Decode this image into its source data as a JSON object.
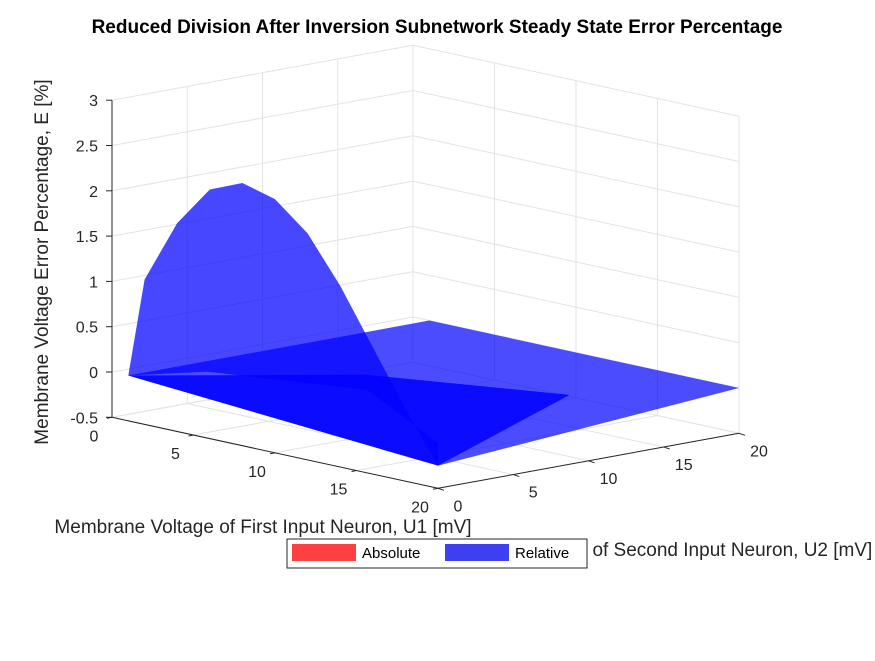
{
  "chart_data": {
    "type": "surface3d",
    "title": "Reduced Division After Inversion Subnetwork Steady State Error Percentage",
    "xlabel": "Membrane Voltage of First Input Neuron, U1 [mV]",
    "ylabel": "Membrane Voltage of Second Input Neuron, U2 [mV]",
    "zlabel": "Membrane Voltage Error Percentage, E [%]",
    "xlim": [
      0,
      20
    ],
    "ylim": [
      0,
      20
    ],
    "zlim": [
      -0.5,
      3
    ],
    "xticks": [
      "0",
      "5",
      "10",
      "15",
      "20"
    ],
    "yticks": [
      "0",
      "5",
      "10",
      "15",
      "20"
    ],
    "zticks": [
      "-0.5",
      "0",
      "0.5",
      "1",
      "1.5",
      "2",
      "2.5",
      "3"
    ],
    "grid": true,
    "legend": {
      "location": "bottom-center",
      "entries": [
        {
          "label": "Absolute",
          "color": "#ff4040"
        },
        {
          "label": "Relative",
          "color": "#3f3ff2"
        }
      ]
    },
    "series": [
      {
        "name": "Relative",
        "color": "#0000ff",
        "alpha": 0.75,
        "u1_edge_at_u2_0": {
          "x": [
            1,
            2,
            4,
            6,
            8,
            10,
            12,
            14,
            16,
            18,
            20
          ],
          "z": [
            0,
            1.1,
            1.8,
            2.25,
            2.4,
            2.3,
            2.0,
            1.5,
            0.9,
            0.3,
            -0.25
          ]
        },
        "u1_edge_at_u2_20": {
          "x": [
            1,
            20
          ],
          "z": [
            0,
            0
          ]
        },
        "u2_edge_at_u1_20": {
          "y": [
            0,
            20
          ],
          "z": [
            -0.25,
            0
          ]
        }
      }
    ]
  }
}
